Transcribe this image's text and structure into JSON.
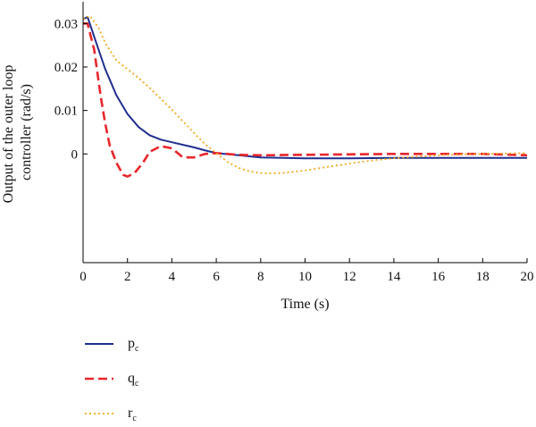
{
  "chart_data": {
    "type": "line",
    "xlabel": "Time (s)",
    "ylabel_lines": [
      "Output of the outer loop",
      "controller (rad/s)"
    ],
    "xlim": [
      0,
      20
    ],
    "ylim": [
      -0.025,
      0.035
    ],
    "xticks": [
      0,
      2,
      4,
      6,
      8,
      10,
      12,
      14,
      16,
      18,
      20
    ],
    "xtick_labels": [
      "0",
      "2",
      "4",
      "6",
      "8",
      "10",
      "12",
      "14",
      "16",
      "18",
      "20"
    ],
    "yticks": [
      0,
      0.01,
      0.02,
      0.03
    ],
    "ytick_labels": [
      "0",
      "0.01",
      "0.02",
      "0.03"
    ],
    "grid": false,
    "legend_position": "below",
    "series": [
      {
        "name": "p",
        "name_sub": "c",
        "color": "#1f2f8f",
        "dash": "solid",
        "x": [
          0,
          0.2,
          0.5,
          1,
          1.5,
          2,
          2.5,
          3,
          3.5,
          4,
          4.5,
          5,
          5.5,
          6,
          7,
          8,
          9,
          10,
          12,
          14,
          16,
          18,
          20
        ],
        "y": [
          0.031,
          0.0315,
          0.027,
          0.0195,
          0.0135,
          0.0092,
          0.0062,
          0.0043,
          0.0033,
          0.0027,
          0.0021,
          0.0015,
          0.0008,
          0.0002,
          -0.0003,
          -0.0008,
          -0.0009,
          -0.001,
          -0.001,
          -0.0009,
          -0.0009,
          -0.0009,
          -0.0009
        ]
      },
      {
        "name": "q",
        "name_sub": "c",
        "color": "#e8262c",
        "dash": "dashed",
        "x": [
          0,
          0.2,
          0.5,
          0.8,
          1.0,
          1.2,
          1.5,
          1.8,
          2.0,
          2.3,
          2.7,
          3.0,
          3.5,
          4.0,
          4.5,
          5.0,
          5.5,
          6.0,
          7,
          8,
          10,
          12,
          14,
          16,
          18,
          20
        ],
        "y": [
          0.03,
          0.03,
          0.024,
          0.013,
          0.007,
          0.002,
          -0.002,
          -0.0048,
          -0.0052,
          -0.0045,
          -0.002,
          0.0005,
          0.0018,
          0.0013,
          -0.0008,
          -0.0008,
          0.0,
          0.0002,
          -0.0002,
          -0.0003,
          -0.0002,
          -0.0001,
          0.0,
          0.0,
          0.0,
          -0.0003
        ]
      },
      {
        "name": "r",
        "name_sub": "c",
        "color": "#f2a81c",
        "dash": "dotted",
        "x": [
          0,
          0.3,
          0.7,
          1,
          1.5,
          2,
          2.5,
          3,
          3.5,
          4,
          4.5,
          5,
          5.5,
          6,
          6.5,
          7,
          7.5,
          8,
          8.5,
          9,
          10,
          11,
          12,
          13,
          14,
          15,
          16,
          17,
          18,
          19,
          20
        ],
        "y": [
          0.031,
          0.0318,
          0.029,
          0.0255,
          0.0215,
          0.0195,
          0.0175,
          0.0152,
          0.0127,
          0.0102,
          0.0075,
          0.0048,
          0.0022,
          0.0002,
          -0.0018,
          -0.0032,
          -0.004,
          -0.0044,
          -0.0045,
          -0.0044,
          -0.0038,
          -0.003,
          -0.0022,
          -0.0015,
          -0.001,
          -0.0006,
          -0.0003,
          -0.0001,
          0.0,
          0.0001,
          0.0002
        ]
      }
    ]
  }
}
